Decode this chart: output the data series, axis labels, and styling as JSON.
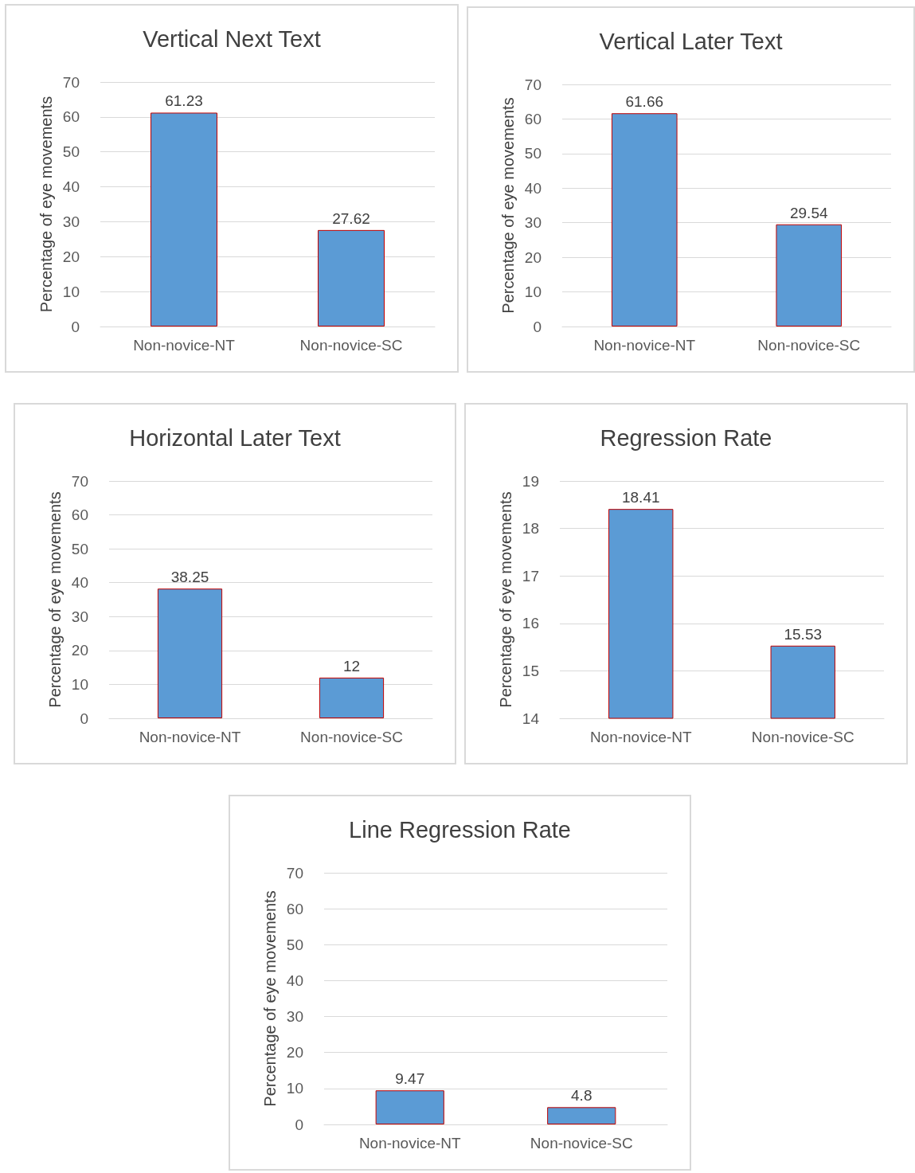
{
  "chart_data": [
    {
      "type": "bar",
      "title": "Vertical Next Text",
      "ylabel": "Percentage of eye movements",
      "categories": [
        "Non-novice-NT",
        "Non-novice-SC"
      ],
      "values": [
        61.23,
        27.62
      ],
      "color": "#5b9bd5",
      "ylim": [
        0,
        70
      ],
      "yticks": [
        0,
        10,
        20,
        30,
        40,
        50,
        60,
        70
      ],
      "grid": "y",
      "data_labels": true
    },
    {
      "type": "bar",
      "title": "Vertical Later Text",
      "ylabel": "Percentage of eye movements",
      "categories": [
        "Non-novice-NT",
        "Non-novice-SC"
      ],
      "values": [
        61.66,
        29.54
      ],
      "color": "#5b9bd5",
      "ylim": [
        0,
        70
      ],
      "yticks": [
        0,
        10,
        20,
        30,
        40,
        50,
        60,
        70
      ],
      "grid": "y",
      "data_labels": true
    },
    {
      "type": "bar",
      "title": "Horizontal Later Text",
      "ylabel": "Percentage of eye movements",
      "categories": [
        "Non-novice-NT",
        "Non-novice-SC"
      ],
      "values": [
        38.25,
        12
      ],
      "color": "#5b9bd5",
      "ylim": [
        0,
        70
      ],
      "yticks": [
        0,
        10,
        20,
        30,
        40,
        50,
        60,
        70
      ],
      "grid": "y",
      "data_labels": true
    },
    {
      "type": "bar",
      "title": "Regression Rate",
      "ylabel": "Percentage of eye movements",
      "categories": [
        "Non-novice-NT",
        "Non-novice-SC"
      ],
      "values": [
        18.41,
        15.53
      ],
      "color": "#5b9bd5",
      "ylim": [
        14,
        19
      ],
      "yticks": [
        14,
        15,
        16,
        17,
        18,
        19
      ],
      "grid": "y",
      "data_labels": true
    },
    {
      "type": "bar",
      "title": "Line Regression Rate",
      "ylabel": "Percentage of eye movements",
      "categories": [
        "Non-novice-NT",
        "Non-novice-SC"
      ],
      "values": [
        9.47,
        4.8
      ],
      "color": "#5b9bd5",
      "ylim": [
        0,
        70
      ],
      "yticks": [
        0,
        10,
        20,
        30,
        40,
        50,
        60,
        70
      ],
      "grid": "y",
      "data_labels": true
    }
  ]
}
